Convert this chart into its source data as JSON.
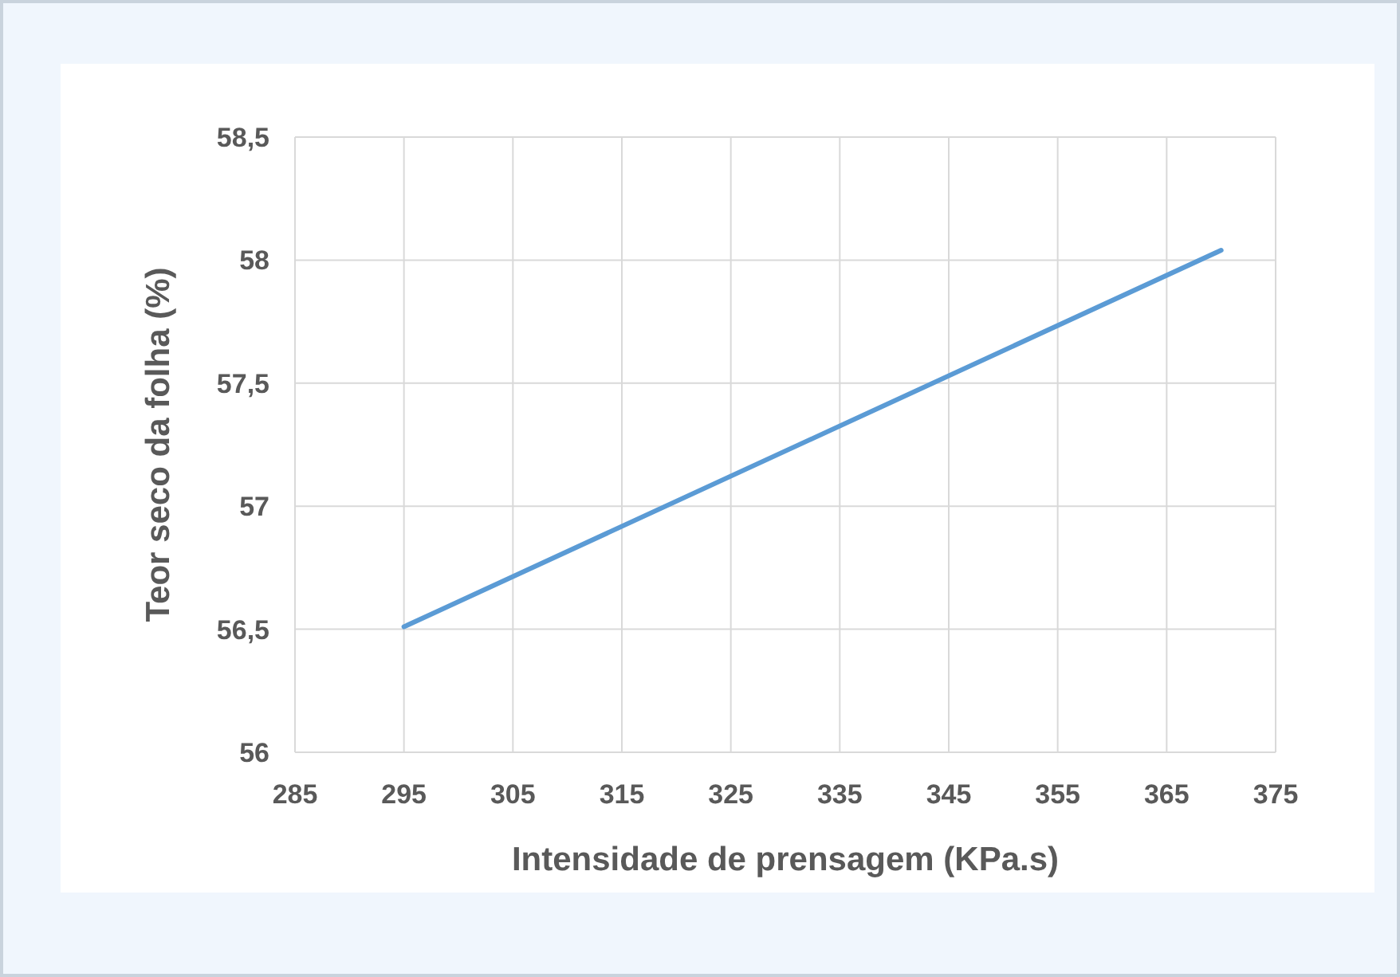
{
  "chart_data": {
    "type": "line",
    "xlabel": "Intensidade de prensagem (KPa.s)",
    "ylabel": "Teor seco da folha (%)",
    "series": [
      {
        "color": "#5b9bd5",
        "x": [
          295,
          370
        ],
        "values": [
          56.51,
          58.04
        ]
      }
    ],
    "xlim": [
      285,
      375
    ],
    "xticks": [
      285,
      295,
      305,
      315,
      325,
      335,
      345,
      355,
      365,
      375
    ],
    "ylim": [
      56,
      58.5
    ],
    "yticks": [
      56,
      {
        "value": 56.5,
        "label": "56,5"
      },
      57,
      {
        "value": 57.5,
        "label": "57,5"
      },
      58,
      {
        "value": 58.5,
        "label": "58,5"
      }
    ],
    "grid": true,
    "marker": "none",
    "line_style": "solid"
  }
}
